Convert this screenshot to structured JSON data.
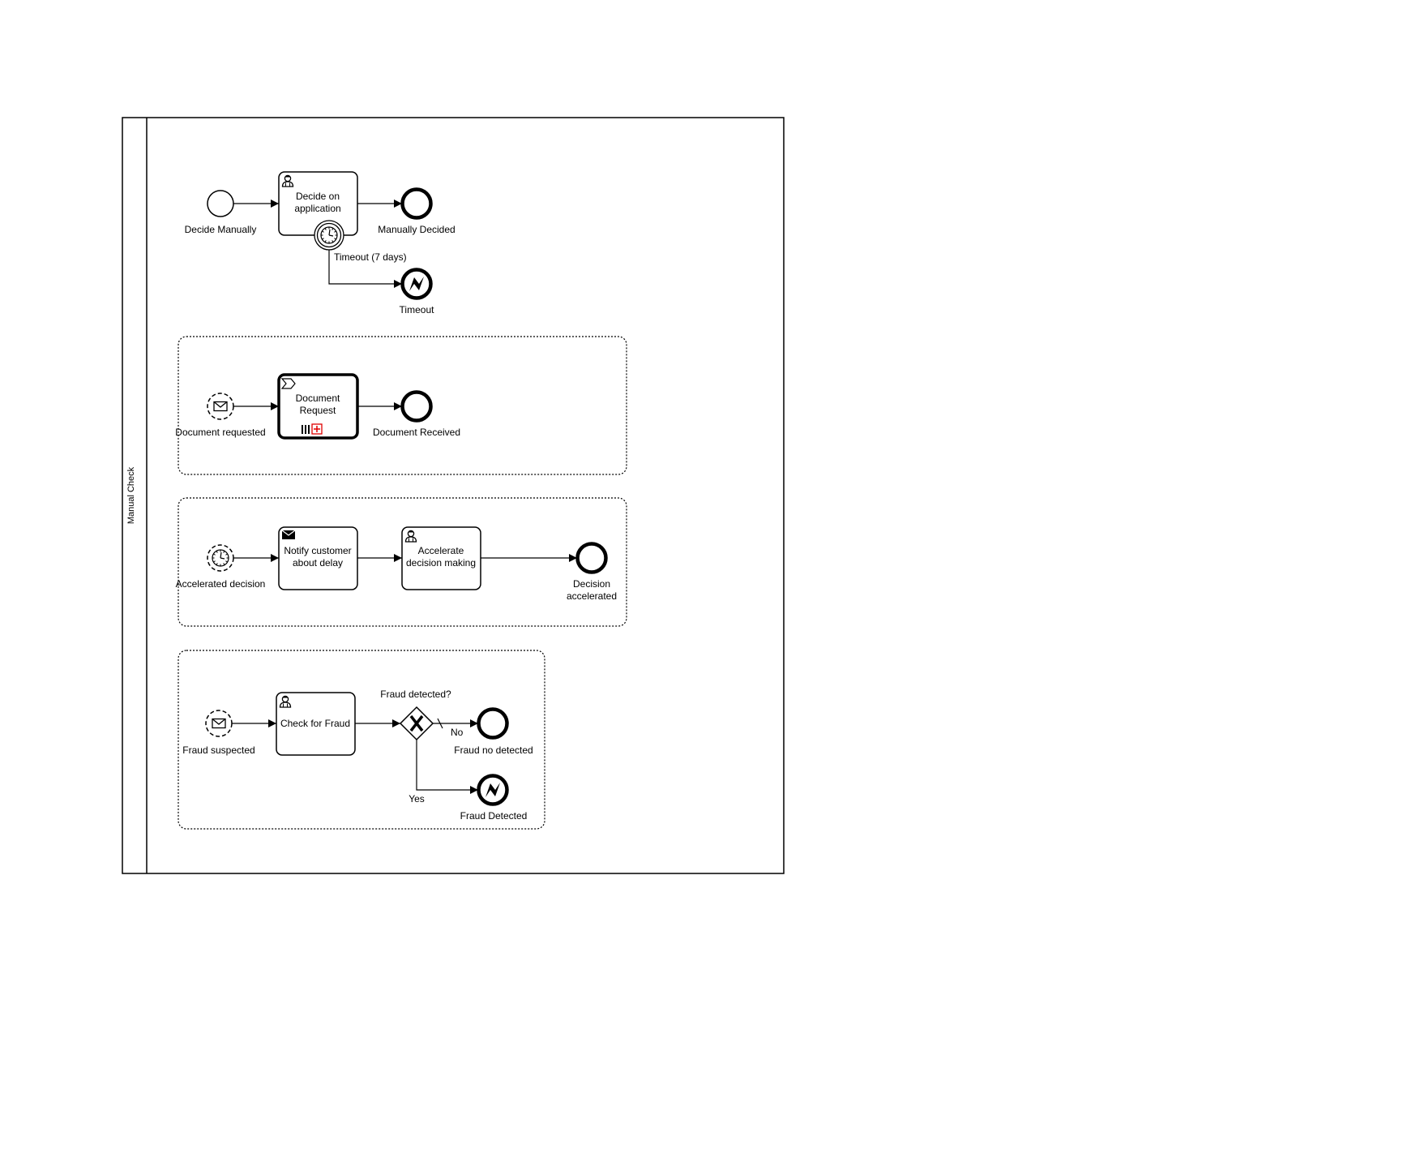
{
  "pool": {
    "label": "Manual Check"
  },
  "main_flow": {
    "start_event": "Decide Manually",
    "task": [
      "Decide on",
      "application"
    ],
    "end_event": "Manually Decided",
    "boundary_event": "Timeout (7 days)",
    "error_end_event": "Timeout"
  },
  "doc_subprocess": {
    "start_event": "Document requested",
    "call_activity": [
      "Document",
      "Request"
    ],
    "end_event": "Document Received"
  },
  "accel_subprocess": {
    "start_event": "Accelerated decision",
    "send_task": [
      "Notify customer",
      "about delay"
    ],
    "user_task": [
      "Accelerate",
      "decision making"
    ],
    "end_event": [
      "Decision",
      "accelerated"
    ]
  },
  "fraud_subprocess": {
    "start_event": "Fraud suspected",
    "task": "Check for Fraud",
    "gateway": "Fraud detected?",
    "flow_no": "No",
    "flow_yes": "Yes",
    "end_event": "Fraud no detected",
    "error_end_event": "Fraud Detected"
  },
  "colors": {
    "stroke": "#000000",
    "marker_red": "#e00000"
  }
}
